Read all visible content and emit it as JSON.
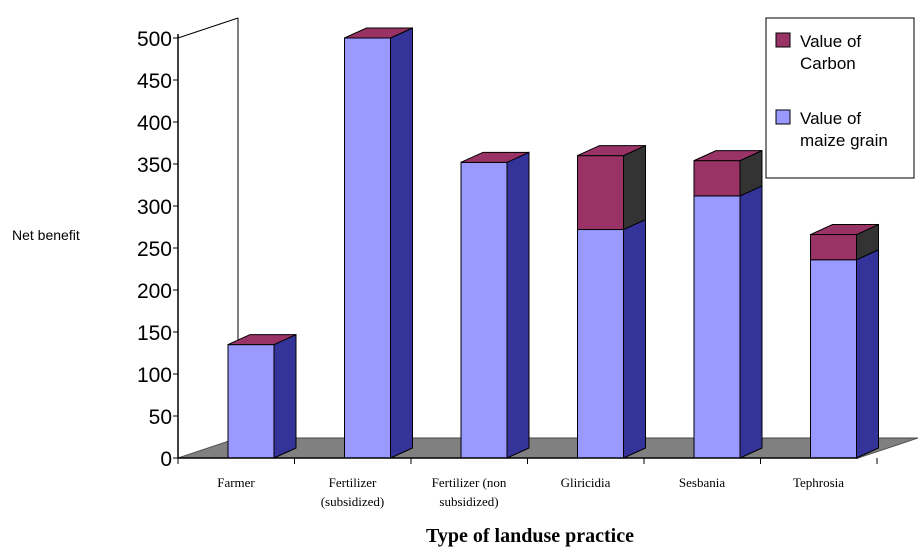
{
  "chart_data": {
    "type": "bar",
    "stacked": true,
    "style": "3d",
    "categories": [
      [
        "Farmer"
      ],
      [
        "Fertilizer",
        "(subsidized)"
      ],
      [
        "Fertilizer (non",
        "subsidized)"
      ],
      [
        "Gliricidia"
      ],
      [
        "Sesbania"
      ],
      [
        "Tephrosia"
      ]
    ],
    "series": [
      {
        "name": [
          "Value of",
          "maize grain"
        ],
        "values": [
          135,
          500,
          352,
          272,
          312,
          236
        ],
        "color": "#9999ff"
      },
      {
        "name": [
          "Value of",
          "Carbon"
        ],
        "values": [
          0,
          0,
          0,
          88,
          42,
          30
        ],
        "color": "#993366"
      }
    ],
    "xlabel": "Type of landuse practice",
    "ylabel": "Net benefit",
    "ylim": [
      0,
      500
    ],
    "yticks": [
      0,
      50,
      100,
      150,
      200,
      250,
      300,
      350,
      400,
      450,
      500
    ],
    "legend_position": "top-right",
    "colors": {
      "floor": "#808080",
      "side_dark": "#333399",
      "carbon_side": "#333333",
      "carbon_top": "#993366"
    }
  }
}
